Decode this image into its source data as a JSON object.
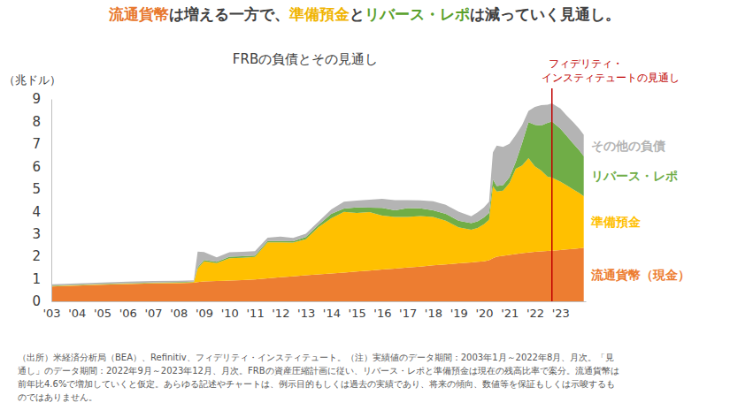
{
  "chart_data": {
    "type": "area",
    "stacked": true,
    "grid": false,
    "headline": [
      {
        "text": "流通貨幣",
        "color": "#e8782d"
      },
      {
        "text": "は増える一方で、",
        "color": "#404040"
      },
      {
        "text": "準備預金",
        "color": "#f0b400"
      },
      {
        "text": "と",
        "color": "#404040"
      },
      {
        "text": "リバース・レポ",
        "color": "#5aa02c"
      },
      {
        "text": "は減っていく見通し。",
        "color": "#404040"
      }
    ],
    "title": "FRBの負債とその見通し",
    "ylabel": "（兆ドル）",
    "annotations": [
      {
        "x": 2022.67,
        "text": [
          "フィデリティ・",
          "インスティテュートの見通し"
        ],
        "color": "#c00000"
      }
    ],
    "notes": [
      "（出所）米経済分析局（BEA）、Refinitiv、フィデリティ・インスティテュート。（注）実績値のデータ期間：2003年1月～2022年8月、月次。「見",
      "通し」のデータ期間：2022年9月～2023年12月、月次。FRBの資産圧縮計画に従い、リバース・レポと準備預金は現在の残高比率で案分。流通貨幣は",
      "前年比4.6%で増加していくと仮定。あらゆる記述やチャートは、例示目的もしくは過去の実績であり、将来の傾向、数値等を保証もしくは示唆するも",
      "のではありません。"
    ],
    "xlim": [
      2003,
      2024
    ],
    "xticks": [
      {
        "value": 2003,
        "label": "'03"
      },
      {
        "value": 2004,
        "label": "'04"
      },
      {
        "value": 2005,
        "label": "'05"
      },
      {
        "value": 2006,
        "label": "'06"
      },
      {
        "value": 2007,
        "label": "'07"
      },
      {
        "value": 2008,
        "label": "'08"
      },
      {
        "value": 2009,
        "label": "'09"
      },
      {
        "value": 2010,
        "label": "'10"
      },
      {
        "value": 2011,
        "label": "'11"
      },
      {
        "value": 2012,
        "label": "'12"
      },
      {
        "value": 2013,
        "label": "'13"
      },
      {
        "value": 2014,
        "label": "'14"
      },
      {
        "value": 2015,
        "label": "'15"
      },
      {
        "value": 2016,
        "label": "'16"
      },
      {
        "value": 2017,
        "label": "'17"
      },
      {
        "value": 2018,
        "label": "'18"
      },
      {
        "value": 2019,
        "label": "'19"
      },
      {
        "value": 2020,
        "label": "'20"
      },
      {
        "value": 2021,
        "label": "'21"
      },
      {
        "value": 2022,
        "label": "'22"
      },
      {
        "value": 2023,
        "label": "'23"
      }
    ],
    "ylim": [
      0,
      9
    ],
    "yticks": [
      0,
      1,
      2,
      3,
      4,
      5,
      6,
      7,
      8,
      9
    ],
    "x": [
      2003,
      2004,
      2005,
      2006,
      2007,
      2008,
      2008.6,
      2008.75,
      2009,
      2009.5,
      2010,
      2010.5,
      2011,
      2011.5,
      2012,
      2012.5,
      2013,
      2013.5,
      2014,
      2014.5,
      2015,
      2015.5,
      2016,
      2016.5,
      2017,
      2017.5,
      2018,
      2018.5,
      2019,
      2019.5,
      2019.75,
      2020,
      2020.2,
      2020.35,
      2020.5,
      2020.75,
      2021,
      2021.25,
      2021.5,
      2021.75,
      2022,
      2022.25,
      2022.5,
      2022.67,
      2023,
      2023.25,
      2023.5,
      2023.75,
      2023.92
    ],
    "series": [
      {
        "name": "流通貨幣（現金）",
        "color": "#ed7d31",
        "values": [
          0.66,
          0.7,
          0.74,
          0.77,
          0.8,
          0.81,
          0.83,
          0.85,
          0.88,
          0.9,
          0.92,
          0.94,
          0.97,
          1.02,
          1.07,
          1.11,
          1.16,
          1.2,
          1.24,
          1.28,
          1.33,
          1.37,
          1.41,
          1.45,
          1.5,
          1.54,
          1.6,
          1.64,
          1.69,
          1.73,
          1.76,
          1.78,
          1.83,
          1.92,
          1.98,
          2.02,
          2.06,
          2.1,
          2.14,
          2.17,
          2.2,
          2.22,
          2.24,
          2.25,
          2.28,
          2.31,
          2.33,
          2.36,
          2.38
        ]
      },
      {
        "name": "準備預金",
        "color": "#ffc000",
        "values": [
          0.02,
          0.02,
          0.02,
          0.02,
          0.02,
          0.02,
          0.02,
          0.6,
          0.9,
          0.8,
          1.0,
          1.0,
          1.0,
          1.6,
          1.55,
          1.5,
          1.6,
          2.1,
          2.45,
          2.7,
          2.6,
          2.6,
          2.4,
          2.3,
          2.25,
          2.25,
          2.15,
          1.95,
          1.6,
          1.45,
          1.5,
          1.65,
          1.8,
          3.2,
          2.9,
          2.9,
          3.2,
          3.8,
          3.9,
          4.2,
          3.8,
          3.6,
          3.3,
          3.25,
          3.05,
          2.85,
          2.65,
          2.45,
          2.3
        ]
      },
      {
        "name": "リバース・レポ",
        "color": "#70ad47",
        "values": [
          0.02,
          0.02,
          0.02,
          0.02,
          0.02,
          0.02,
          0.02,
          0.06,
          0.06,
          0.06,
          0.06,
          0.06,
          0.06,
          0.06,
          0.06,
          0.06,
          0.1,
          0.1,
          0.2,
          0.15,
          0.25,
          0.2,
          0.35,
          0.3,
          0.4,
          0.35,
          0.3,
          0.3,
          0.3,
          0.3,
          0.3,
          0.3,
          0.3,
          0.3,
          0.25,
          0.25,
          0.25,
          0.3,
          1.0,
          1.6,
          1.85,
          2.0,
          2.4,
          2.5,
          2.35,
          2.2,
          2.05,
          1.9,
          1.78
        ]
      },
      {
        "name": "その他の負債",
        "color": "#b4b4b4",
        "values": [
          0.06,
          0.06,
          0.06,
          0.06,
          0.06,
          0.06,
          0.06,
          0.7,
          0.35,
          0.2,
          0.2,
          0.2,
          0.2,
          0.15,
          0.2,
          0.15,
          0.15,
          0.15,
          0.2,
          0.3,
          0.3,
          0.35,
          0.4,
          0.45,
          0.35,
          0.35,
          0.4,
          0.4,
          0.4,
          0.3,
          0.4,
          0.45,
          0.5,
          1.2,
          1.8,
          1.7,
          1.5,
          1.2,
          0.8,
          0.5,
          0.8,
          0.9,
          0.8,
          0.8,
          0.9,
          0.9,
          0.95,
          0.95,
          0.95
        ]
      }
    ]
  }
}
